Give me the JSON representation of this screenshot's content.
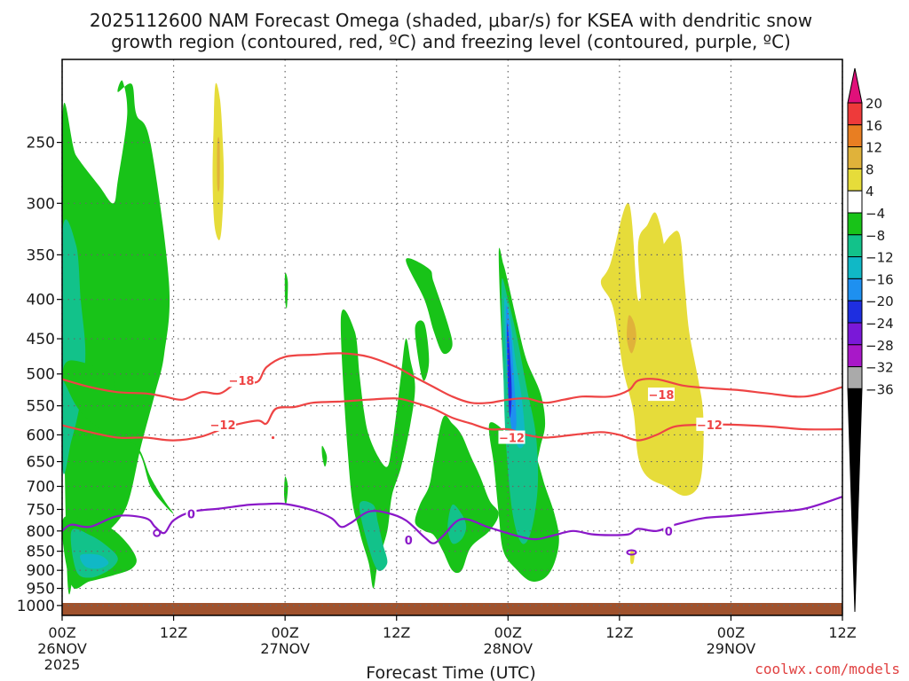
{
  "chart_data": {
    "type": "heatmap",
    "title_line1": "2025112600 NAM Forecast Omega (shaded, μbar/s) for KSEA with dendritic snow",
    "title_line2": "growth region (contoured, red, ºC) and freezing level (contoured, purple, ºC)",
    "xlabel": "Forecast Time (UTC)",
    "watermark": "coolwx.com/models",
    "x_ticks": [
      {
        "hour": 0,
        "l1": "00Z",
        "l2": "26NOV",
        "l3": "2025"
      },
      {
        "hour": 12,
        "l1": "12Z",
        "l2": "",
        "l3": ""
      },
      {
        "hour": 24,
        "l1": "00Z",
        "l2": "27NOV",
        "l3": ""
      },
      {
        "hour": 36,
        "l1": "12Z",
        "l2": "",
        "l3": ""
      },
      {
        "hour": 48,
        "l1": "00Z",
        "l2": "28NOV",
        "l3": ""
      },
      {
        "hour": 60,
        "l1": "12Z",
        "l2": "",
        "l3": ""
      },
      {
        "hour": 72,
        "l1": "00Z",
        "l2": "29NOV",
        "l3": ""
      },
      {
        "hour": 84,
        "l1": "12Z",
        "l2": "",
        "l3": ""
      }
    ],
    "x_range_hours": [
      0,
      84
    ],
    "y_levels_hpa": [
      250,
      300,
      350,
      400,
      450,
      500,
      550,
      600,
      650,
      700,
      750,
      800,
      850,
      900,
      950,
      1000
    ],
    "y_range_hpa": [
      195,
      1030
    ],
    "y_scale": "log (inverted)",
    "grid": "dotted",
    "colorbar": {
      "labels": [
        "20",
        "16",
        "12",
        "8",
        "4",
        "−4",
        "−8",
        "−12",
        "−16",
        "−20",
        "−24",
        "−28",
        "−32",
        "−36"
      ],
      "top_arrow_color": "#e0107a",
      "bottom_arrow_color": "#000000",
      "colors": [
        "#ee3a3a",
        "#e87e22",
        "#e0b23a",
        "#e6dc3a",
        "#ffffff",
        "#18c318",
        "#12c28a",
        "#10b8c6",
        "#1e90f0",
        "#1e2ee0",
        "#7a18d8",
        "#a818c8",
        "#aaaaaa"
      ]
    },
    "contours": {
      "dgz_minus18": {
        "name": "-18",
        "color": "#ee4444",
        "x": [
          0,
          3,
          6,
          9,
          11,
          13,
          15,
          17,
          19,
          21,
          22,
          24,
          27,
          30,
          33,
          36,
          38,
          40,
          42,
          44,
          46,
          48,
          50,
          52,
          54,
          56,
          59,
          61,
          62,
          64,
          67,
          70,
          73,
          76,
          80,
          84
        ],
        "p": [
          508,
          520,
          528,
          530,
          535,
          540,
          528,
          530,
          512,
          512,
          490,
          475,
          472,
          470,
          475,
          490,
          505,
          520,
          535,
          545,
          545,
          540,
          538,
          545,
          540,
          535,
          535,
          525,
          510,
          508,
          518,
          522,
          525,
          530,
          535,
          520
        ]
      },
      "dgz_minus12": {
        "name": "-12",
        "color": "#ee4444",
        "x": [
          0,
          3,
          6,
          9,
          12,
          15,
          18,
          21,
          22,
          23,
          25,
          27,
          30,
          33,
          36,
          38,
          40,
          42,
          44,
          46,
          48,
          50,
          52,
          55,
          58,
          60,
          62,
          64,
          66,
          69,
          72,
          76,
          80,
          84
        ],
        "p": [
          583,
          595,
          605,
          605,
          610,
          603,
          585,
          575,
          580,
          555,
          552,
          545,
          543,
          540,
          538,
          545,
          555,
          570,
          580,
          590,
          590,
          600,
          605,
          600,
          595,
          600,
          610,
          600,
          585,
          582,
          582,
          585,
          590,
          590
        ]
      },
      "freezing_level_0": {
        "name": "0",
        "color": "#8a18c8",
        "x": [
          0,
          1,
          3,
          6,
          9,
          10,
          11,
          12,
          14,
          17,
          20,
          22,
          24,
          27,
          29,
          30,
          31,
          33,
          35,
          37,
          39,
          40,
          41,
          43,
          46,
          49,
          51,
          53,
          55,
          57,
          59,
          61,
          62,
          64,
          66,
          69,
          72,
          76,
          80,
          84
        ],
        "p": [
          800,
          785,
          790,
          765,
          770,
          790,
          805,
          775,
          755,
          748,
          740,
          738,
          738,
          752,
          770,
          790,
          782,
          755,
          758,
          775,
          815,
          830,
          812,
          772,
          792,
          812,
          820,
          810,
          800,
          808,
          810,
          808,
          795,
          800,
          785,
          770,
          765,
          757,
          748,
          722
        ]
      }
    },
    "contour_labels": [
      {
        "text": "−18",
        "x": 19.3,
        "p": 510
      },
      {
        "text": "−18",
        "x": 64.5,
        "p": 532
      },
      {
        "text": "−12",
        "x": 17.3,
        "p": 582
      },
      {
        "text": "−12",
        "x": 48.4,
        "p": 605
      },
      {
        "text": "−12",
        "x": 69.7,
        "p": 582
      },
      {
        "text": "0",
        "x": 13.9,
        "p": 760
      },
      {
        "text": "0",
        "x": 37.3,
        "p": 822
      },
      {
        "text": "0",
        "x": 65.3,
        "p": 800
      }
    ],
    "omega_regions": [
      {
        "level": -4,
        "color": "#18c318",
        "x": [
          0,
          1.5,
          4,
          5.5,
          6,
          7,
          6.5,
          6,
          7.5,
          8,
          9.5,
          11.5,
          11,
          10,
          8.5,
          7,
          5,
          3,
          1.5,
          0.5
        ],
        "p": [
          240,
          260,
          285,
          300,
          280,
          230,
          208,
          215,
          210,
          230,
          250,
          380,
          470,
          530,
          620,
          740,
          800,
          830,
          870,
          880
        ]
      },
      {
        "level": -8,
        "color": "#12c28a",
        "x": [
          0,
          1.5,
          2,
          2.5,
          2,
          1,
          0
        ],
        "p": [
          330,
          340,
          400,
          470,
          540,
          610,
          650
        ]
      },
      {
        "level": -4,
        "color": "#18c318",
        "x": [
          1,
          5,
          6,
          7,
          8.5,
          9.5,
          11,
          12,
          11,
          9.5,
          8,
          5,
          2,
          0.5,
          0
        ],
        "p": [
          480,
          500,
          540,
          600,
          640,
          700,
          740,
          760,
          730,
          680,
          620,
          600,
          560,
          520,
          500
        ]
      },
      {
        "level": -4,
        "color": "#18c318",
        "x": [
          0,
          2,
          5,
          7,
          8,
          7.5,
          6,
          3,
          1
        ],
        "p": [
          780,
          770,
          790,
          830,
          870,
          895,
          910,
          930,
          940
        ]
      },
      {
        "level": -8,
        "color": "#12c28a",
        "x": [
          1,
          3,
          5,
          6,
          5,
          3,
          1.5
        ],
        "p": [
          800,
          810,
          840,
          870,
          900,
          920,
          900
        ]
      },
      {
        "level": -12,
        "color": "#10b8c6",
        "x": [
          2,
          4,
          5,
          4,
          2.5
        ],
        "p": [
          860,
          860,
          880,
          895,
          890
        ]
      },
      {
        "level": 4,
        "color": "#e6dc3a",
        "x": [
          16.5,
          17,
          17.3,
          17.4,
          17.2,
          16.9,
          16.4,
          16.2,
          16.3
        ],
        "p": [
          210,
          220,
          250,
          280,
          320,
          335,
          320,
          280,
          240
        ]
      },
      {
        "level": 8,
        "color": "#e0b23a",
        "x": [
          16.7,
          16.95,
          16.95,
          16.7
        ],
        "p": [
          250,
          250,
          285,
          285
        ]
      },
      {
        "level": -4,
        "color": "#18c318",
        "x": [
          24,
          24.3,
          24.2,
          24
        ],
        "p": [
          370,
          380,
          410,
          400
        ]
      },
      {
        "level": -4,
        "color": "#18c318",
        "x": [
          24,
          24.3,
          24.1,
          23.9
        ],
        "p": [
          680,
          700,
          740,
          720
        ]
      },
      {
        "level": -4,
        "color": "#18c318",
        "x": [
          30,
          31.5,
          32,
          32.5,
          33,
          34,
          35,
          35.5,
          36,
          36.5,
          37,
          37.5,
          38,
          37.5,
          36.5,
          35.5,
          35,
          34,
          33.5,
          33,
          32,
          31
        ],
        "p": [
          425,
          440,
          500,
          560,
          600,
          640,
          660,
          620,
          560,
          500,
          450,
          480,
          520,
          580,
          660,
          720,
          800,
          880,
          950,
          880,
          800,
          690
        ]
      },
      {
        "level": -4,
        "color": "#18c318",
        "x": [
          28,
          28.5,
          28.3,
          28
        ],
        "p": [
          620,
          640,
          660,
          640
        ]
      },
      {
        "level": -8,
        "color": "#12c28a",
        "x": [
          32,
          33.5,
          34,
          34.5,
          35,
          34,
          33
        ],
        "p": [
          740,
          740,
          780,
          830,
          880,
          900,
          840
        ]
      },
      {
        "level": -4,
        "color": "#18c318",
        "x": [
          37,
          39.5,
          40,
          41.5,
          42,
          41,
          40,
          39
        ],
        "p": [
          355,
          365,
          380,
          430,
          460,
          470,
          440,
          400
        ]
      },
      {
        "level": -4,
        "color": "#18c318",
        "x": [
          38,
          39,
          39.5,
          39,
          38.5
        ],
        "p": [
          435,
          430,
          480,
          510,
          490
        ]
      },
      {
        "level": -4,
        "color": "#18c318",
        "x": [
          41,
          42,
          43,
          44,
          45,
          46,
          47,
          46,
          44,
          43,
          42,
          41,
          40,
          39,
          38,
          38.5,
          39.5,
          40
        ],
        "p": [
          570,
          580,
          600,
          640,
          680,
          730,
          760,
          800,
          840,
          900,
          900,
          850,
          810,
          800,
          780,
          740,
          700,
          650
        ]
      },
      {
        "level": -8,
        "color": "#12c28a",
        "x": [
          42,
          43,
          43.5,
          43,
          42,
          41.5
        ],
        "p": [
          740,
          760,
          790,
          820,
          830,
          790
        ]
      },
      {
        "level": -4,
        "color": "#18c318",
        "x": [
          46,
          48,
          49,
          50,
          51,
          52,
          53,
          53.5,
          53,
          52,
          50.5,
          49,
          47.5,
          47,
          46.5
        ],
        "p": [
          580,
          600,
          630,
          620,
          640,
          700,
          760,
          820,
          880,
          920,
          930,
          900,
          850,
          760,
          660
        ]
      },
      {
        "level": -4,
        "color": "#18c318",
        "x": [
          47,
          47.5,
          48,
          49,
          50,
          51.5,
          52,
          51.5,
          51,
          50.5,
          50,
          49,
          48.5,
          48,
          47.5
        ],
        "p": [
          350,
          360,
          380,
          430,
          480,
          530,
          580,
          620,
          660,
          700,
          760,
          760,
          700,
          600,
          500
        ]
      },
      {
        "level": -8,
        "color": "#12c28a",
        "x": [
          47.3,
          48,
          49,
          50,
          51,
          51.2,
          50.5,
          49.5,
          48.5,
          47.8,
          47.5
        ],
        "p": [
          380,
          400,
          450,
          520,
          600,
          700,
          800,
          830,
          760,
          620,
          500
        ]
      },
      {
        "level": -12,
        "color": "#10b8c6",
        "x": [
          47.6,
          48.2,
          48.8,
          49.5,
          49.8,
          49,
          48.2,
          47.8
        ],
        "p": [
          400,
          420,
          480,
          540,
          610,
          620,
          560,
          480
        ]
      },
      {
        "level": -16,
        "color": "#1e90f0",
        "x": [
          47.8,
          48.3,
          48.6,
          48.9,
          48.4,
          48.0
        ],
        "p": [
          410,
          440,
          500,
          580,
          590,
          520
        ]
      },
      {
        "level": -20,
        "color": "#1e2ee0",
        "x": [
          47.9,
          48.2,
          48.4,
          48.2,
          48.0
        ],
        "p": [
          430,
          470,
          530,
          570,
          520
        ]
      },
      {
        "level": 4,
        "color": "#e6dc3a",
        "x": [
          58,
          59,
          61,
          62,
          63,
          64,
          65.5,
          66.5,
          67,
          67.5,
          68.5,
          69,
          69,
          68.5,
          67,
          65,
          63,
          62,
          61.5,
          60.5,
          60,
          59.5,
          59
        ],
        "p": [
          380,
          360,
          300,
          400,
          360,
          350,
          330,
          330,
          380,
          440,
          510,
          560,
          640,
          700,
          720,
          700,
          680,
          640,
          560,
          500,
          460,
          420,
          400
        ]
      },
      {
        "level": 4,
        "color": "#e6dc3a",
        "x": [
          62,
          63,
          64,
          65,
          64.5,
          63,
          62.5
        ],
        "p": [
          340,
          320,
          310,
          360,
          440,
          470,
          420
        ]
      },
      {
        "level": 8,
        "color": "#e0b23a",
        "x": [
          61,
          61.6,
          61.8,
          61.3,
          60.8
        ],
        "p": [
          420,
          430,
          450,
          470,
          450
        ]
      },
      {
        "level": 4,
        "color": "#e6dc3a",
        "x": [
          61.2,
          61.6,
          61.5,
          61.2
        ],
        "p": [
          850,
          855,
          880,
          880
        ]
      }
    ],
    "surface_band_color": "#a0522d"
  }
}
